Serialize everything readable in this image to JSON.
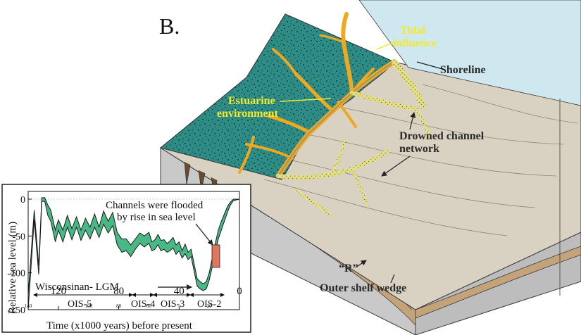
{
  "panel_label": "B.",
  "block_labels": {
    "tidal_line1": "Tidal",
    "tidal_line2": "influence",
    "shoreline": "Shoreline",
    "estuarine_line1": "Estuarine",
    "estuarine_line2": "environment",
    "drowned_line1": "Drowned channel",
    "drowned_line2": "network",
    "r_label": "“R”",
    "outer_shelf": "Outer shelf wedge"
  },
  "colors": {
    "coastal_plain": "#2e8c86",
    "shelf_surface": "#d9d1c1",
    "sea": "#cfe7ee",
    "block_side": "#c6c6c6",
    "wedge": "#c4a27a",
    "channels": "#f0a820",
    "drowned_channels": "#d9d67a",
    "sea_level_band": "#48b884",
    "flood_marker": "#e07660"
  },
  "inset": {
    "annotation_line1": "Channels were flooded",
    "annotation_line2": "by rise in sea level",
    "wisconsinan": "Wisconsinan- LGM",
    "stages": [
      "OIS-5",
      "OIS-4",
      "OIS-3",
      "OIS-2"
    ],
    "minor_tick_labels": [
      "140",
      "100",
      "80",
      "60",
      "20"
    ]
  },
  "chart_data": {
    "type": "area",
    "xlabel": "Time (x1000 years) before present",
    "ylabel": "Relative sea level (m)",
    "xlim": [
      140,
      0
    ],
    "ylim": [
      -150,
      10
    ],
    "x_ticks": [
      120,
      80,
      40,
      0
    ],
    "y_ticks": [
      0,
      -50,
      -100,
      -150
    ],
    "series": [
      {
        "x": [
          140,
          136,
          133,
          131,
          129,
          127,
          125,
          122,
          120,
          117,
          114,
          111,
          108,
          105,
          102,
          99,
          96,
          93,
          90,
          87,
          84,
          81,
          78,
          75,
          72,
          69,
          66,
          63,
          60,
          58,
          56,
          54,
          52,
          50,
          48,
          46,
          44,
          42,
          40,
          38,
          36,
          34,
          32,
          30,
          28,
          26,
          24,
          22,
          20,
          18,
          16,
          14,
          12,
          10,
          8,
          6,
          4,
          2,
          0
        ],
        "upper": [
          -130,
          -15,
          -90,
          2,
          2,
          -8,
          -15,
          -42,
          -28,
          -42,
          -22,
          -40,
          -24,
          -42,
          -26,
          -38,
          -20,
          -38,
          -16,
          -30,
          -18,
          -45,
          -54,
          -54,
          -62,
          -54,
          -46,
          -50,
          -45,
          -58,
          -55,
          -48,
          -56,
          -55,
          -60,
          -57,
          -52,
          -62,
          -58,
          -70,
          -61,
          -72,
          -68,
          -88,
          -108,
          -112,
          -115,
          -112,
          -100,
          -80,
          -60,
          -42,
          -30,
          -20,
          -10,
          -4,
          0,
          0,
          0
        ],
        "lower": [
          -150,
          -28,
          -102,
          -3,
          -3,
          -22,
          -30,
          -58,
          -42,
          -58,
          -38,
          -55,
          -38,
          -56,
          -42,
          -54,
          -38,
          -52,
          -34,
          -46,
          -36,
          -62,
          -72,
          -70,
          -78,
          -68,
          -60,
          -65,
          -60,
          -70,
          -68,
          -62,
          -70,
          -68,
          -72,
          -70,
          -66,
          -75,
          -70,
          -80,
          -74,
          -82,
          -78,
          -98,
          -118,
          -122,
          -124,
          -122,
          -110,
          -92,
          -72,
          -54,
          -42,
          -30,
          -18,
          -8,
          -2,
          -1,
          0
        ]
      }
    ]
  }
}
